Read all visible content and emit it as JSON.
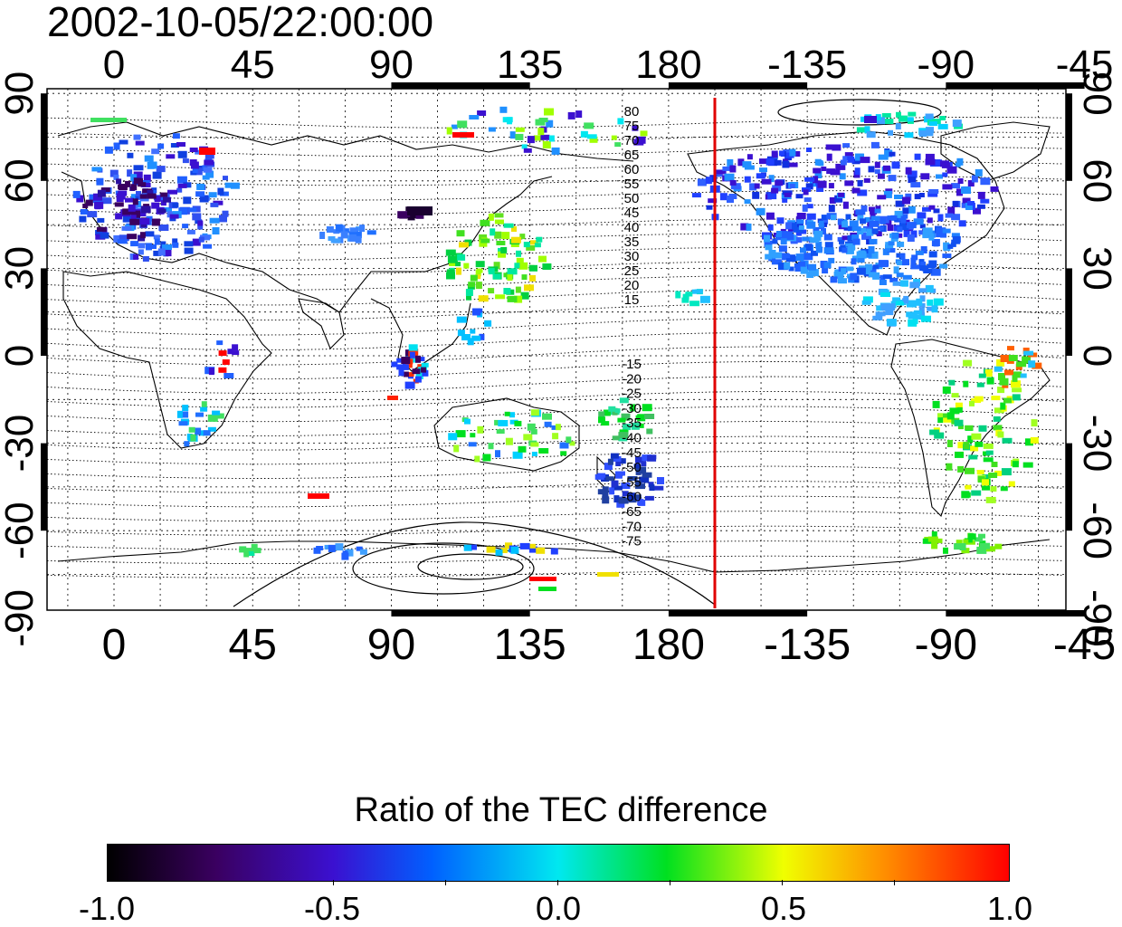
{
  "timestamp": "2002-10-05/22:00:00",
  "map": {
    "top_lon_labels": [
      "0",
      "45",
      "90",
      "135",
      "180",
      "-135",
      "-90",
      "-45"
    ],
    "bottom_lon_labels": [
      "0",
      "45",
      "90",
      "135",
      "180",
      "-135",
      "-90",
      "-45"
    ],
    "left_lat_labels": [
      "90",
      "60",
      "30",
      "0",
      "-30",
      "-60",
      "-90"
    ],
    "right_lat_labels": [
      "90",
      "60",
      "30",
      "0",
      "-30",
      "-60",
      "-90"
    ],
    "contour_labels_north": [
      "80",
      "75",
      "70",
      "65",
      "60",
      "55",
      "50",
      "45",
      "40",
      "35",
      "30",
      "25",
      "20",
      "15"
    ],
    "contour_labels_south": [
      "-15",
      "-20",
      "-25",
      "-30",
      "-35",
      "-40",
      "-45",
      "-50",
      "-55",
      "-60",
      "-65",
      "-70",
      "-75"
    ],
    "marker_line_color": "#e00000"
  },
  "colorbar": {
    "title": "Ratio of the TEC difference",
    "tick_labels": [
      "-1.0",
      "-0.5",
      "0.0",
      "0.5",
      "1.0"
    ],
    "colors": [
      "#000000",
      "#3a0060",
      "#3b10d0",
      "#0060ff",
      "#00e8f0",
      "#00e020",
      "#f0ff00",
      "#ff9000",
      "#ff0000"
    ]
  }
}
